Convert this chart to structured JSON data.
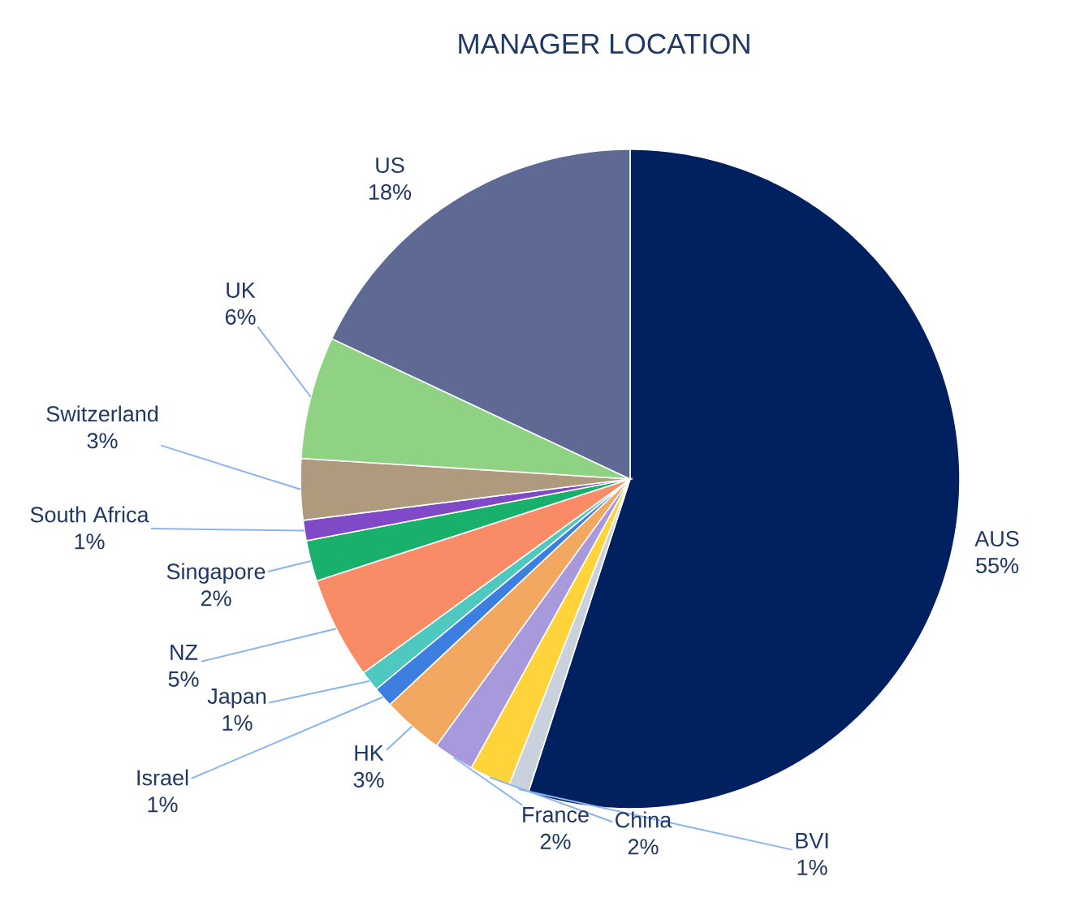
{
  "chart_data": {
    "type": "pie",
    "title": "MANAGER LOCATION",
    "categories": [
      "AUS",
      "BVI",
      "China",
      "France",
      "HK",
      "Israel",
      "Japan",
      "NZ",
      "Singapore",
      "South Africa",
      "Switzerland",
      "UK",
      "US"
    ],
    "values": [
      55,
      1,
      2,
      2,
      3,
      1,
      1,
      5,
      2,
      1,
      3,
      6,
      18
    ],
    "value_labels": [
      "55%",
      "1%",
      "2%",
      "2%",
      "3%",
      "1%",
      "1%",
      "5%",
      "2%",
      "1%",
      "3%",
      "6%",
      "18%"
    ],
    "colors": [
      "#002060",
      "#c9d1dc",
      "#ffd43b",
      "#a899dd",
      "#f2a860",
      "#3d7fe0",
      "#4fc9c0",
      "#f98b66",
      "#18b06a",
      "#7f49c8",
      "#b09a7e",
      "#8fd283",
      "#5f6a94"
    ]
  }
}
